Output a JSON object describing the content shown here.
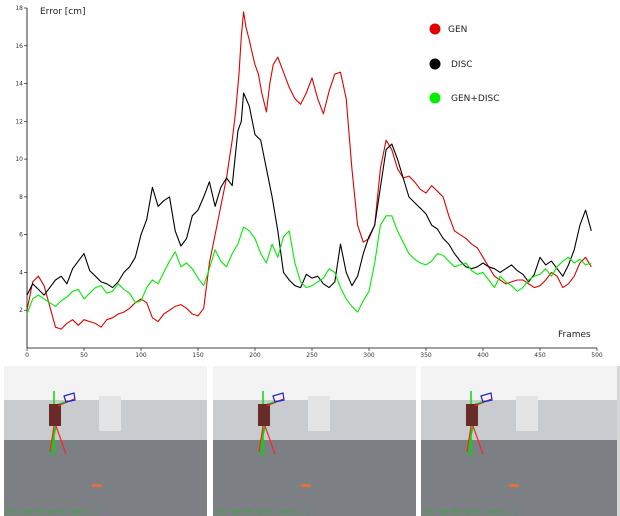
{
  "chart_data": {
    "type": "line",
    "ylabel": "Error [cm]",
    "xlabel": "Frames",
    "xlim": [
      0,
      500
    ],
    "ylim": [
      0,
      18
    ],
    "xticks": [
      0,
      50,
      100,
      150,
      200,
      250,
      300,
      350,
      400,
      450,
      500
    ],
    "yticks": [
      2,
      4,
      6,
      8,
      10,
      12,
      14,
      16,
      18
    ],
    "grid": false,
    "legend_position": "top-right",
    "series": [
      {
        "name": "GEN",
        "color": "#e00000",
        "x": [
          0,
          5,
          10,
          15,
          20,
          25,
          30,
          35,
          40,
          45,
          50,
          55,
          60,
          65,
          70,
          75,
          80,
          85,
          90,
          95,
          100,
          105,
          110,
          115,
          120,
          125,
          130,
          135,
          140,
          145,
          150,
          155,
          160,
          165,
          170,
          175,
          180,
          183,
          186,
          188,
          190,
          192,
          195,
          198,
          200,
          203,
          206,
          210,
          213,
          216,
          220,
          225,
          230,
          235,
          240,
          245,
          250,
          255,
          260,
          265,
          270,
          275,
          280,
          285,
          290,
          295,
          300,
          305,
          310,
          315,
          320,
          325,
          330,
          335,
          340,
          345,
          350,
          355,
          360,
          365,
          370,
          375,
          380,
          385,
          390,
          395,
          400,
          405,
          410,
          415,
          420,
          425,
          430,
          435,
          440,
          445,
          450,
          455,
          460,
          465,
          470,
          475,
          480,
          485,
          490,
          495
        ],
        "values": [
          2.0,
          3.5,
          3.8,
          3.3,
          2.2,
          1.1,
          1.0,
          1.3,
          1.5,
          1.2,
          1.5,
          1.4,
          1.3,
          1.1,
          1.5,
          1.6,
          1.8,
          1.9,
          2.1,
          2.4,
          2.6,
          2.4,
          1.6,
          1.4,
          1.8,
          2.0,
          2.2,
          2.3,
          2.1,
          1.8,
          1.7,
          2.1,
          4.5,
          6.0,
          7.5,
          9.0,
          11.0,
          12.5,
          14.5,
          16.5,
          17.8,
          17.0,
          16.3,
          15.5,
          15.0,
          14.5,
          13.5,
          12.5,
          14.0,
          15.0,
          15.4,
          14.6,
          13.8,
          13.2,
          12.9,
          13.5,
          14.3,
          13.2,
          12.4,
          13.6,
          14.5,
          14.6,
          13.2,
          9.5,
          6.5,
          5.6,
          5.8,
          6.5,
          9.5,
          11.0,
          10.5,
          9.5,
          9.0,
          9.1,
          8.8,
          8.4,
          8.2,
          8.6,
          8.3,
          8.0,
          7.0,
          6.2,
          6.0,
          5.8,
          5.5,
          5.3,
          4.8,
          4.3,
          3.8,
          3.6,
          3.4,
          3.5,
          3.6,
          3.6,
          3.4,
          3.2,
          3.3,
          3.6,
          4.0,
          3.8,
          3.2,
          3.4,
          3.8,
          4.5,
          4.8,
          4.3
        ]
      },
      {
        "name": "DISC",
        "color": "#000000",
        "x": [
          0,
          5,
          10,
          15,
          20,
          25,
          30,
          35,
          40,
          45,
          50,
          55,
          60,
          65,
          70,
          75,
          80,
          85,
          90,
          95,
          100,
          105,
          110,
          115,
          120,
          125,
          130,
          135,
          140,
          145,
          150,
          155,
          160,
          165,
          170,
          175,
          180,
          185,
          188,
          190,
          195,
          200,
          205,
          210,
          215,
          220,
          225,
          230,
          235,
          240,
          245,
          250,
          255,
          260,
          265,
          270,
          275,
          280,
          285,
          290,
          295,
          300,
          305,
          310,
          315,
          320,
          325,
          330,
          335,
          340,
          345,
          350,
          355,
          360,
          365,
          370,
          375,
          380,
          385,
          390,
          395,
          400,
          405,
          410,
          415,
          420,
          425,
          430,
          435,
          440,
          445,
          450,
          455,
          460,
          465,
          470,
          475,
          480,
          485,
          490,
          495
        ],
        "values": [
          2.8,
          3.4,
          3.1,
          2.8,
          3.2,
          3.6,
          3.8,
          3.4,
          4.2,
          4.6,
          5.0,
          4.1,
          3.8,
          3.5,
          3.4,
          3.2,
          3.5,
          4.0,
          4.3,
          4.8,
          6.0,
          6.8,
          8.5,
          7.5,
          7.8,
          8.0,
          6.2,
          5.4,
          5.8,
          7.0,
          7.3,
          8.0,
          8.8,
          7.5,
          8.5,
          9.0,
          8.6,
          11.5,
          12.0,
          13.5,
          12.8,
          11.3,
          11.0,
          9.5,
          8.0,
          6.2,
          4.0,
          3.6,
          3.3,
          3.2,
          3.9,
          3.7,
          3.8,
          3.4,
          3.2,
          3.5,
          5.5,
          4.0,
          3.3,
          3.8,
          5.0,
          5.9,
          6.5,
          8.5,
          10.5,
          10.8,
          10.0,
          9.0,
          8.0,
          7.7,
          7.4,
          7.1,
          6.5,
          6.3,
          5.8,
          5.5,
          5.0,
          4.6,
          4.3,
          4.2,
          4.3,
          4.5,
          4.3,
          4.2,
          4.0,
          4.2,
          4.4,
          4.1,
          3.9,
          3.5,
          3.9,
          4.8,
          4.4,
          4.6,
          4.2,
          3.8,
          4.4,
          5.2,
          6.5,
          7.3,
          6.2
        ]
      },
      {
        "name": "GEN+DISC",
        "color": "#00ee00",
        "x": [
          0,
          5,
          10,
          15,
          20,
          25,
          30,
          35,
          40,
          45,
          50,
          55,
          60,
          65,
          70,
          75,
          80,
          85,
          90,
          95,
          100,
          105,
          110,
          115,
          120,
          125,
          130,
          135,
          140,
          145,
          150,
          155,
          160,
          165,
          170,
          175,
          180,
          185,
          190,
          195,
          200,
          205,
          210,
          215,
          220,
          225,
          230,
          235,
          240,
          245,
          250,
          255,
          260,
          265,
          270,
          275,
          280,
          285,
          290,
          295,
          300,
          305,
          310,
          315,
          320,
          325,
          330,
          335,
          340,
          345,
          350,
          355,
          360,
          365,
          370,
          375,
          380,
          385,
          390,
          395,
          400,
          405,
          410,
          415,
          420,
          425,
          430,
          435,
          440,
          445,
          450,
          455,
          460,
          465,
          470,
          475,
          480,
          485,
          490,
          495
        ],
        "values": [
          1.8,
          2.6,
          2.8,
          2.6,
          2.4,
          2.2,
          2.5,
          2.7,
          3.0,
          3.1,
          2.6,
          2.9,
          3.2,
          3.3,
          2.9,
          3.0,
          3.4,
          3.1,
          2.9,
          2.4,
          2.5,
          3.2,
          3.6,
          3.4,
          4.0,
          4.6,
          5.1,
          4.3,
          4.5,
          4.2,
          3.7,
          3.3,
          4.2,
          5.2,
          4.6,
          4.3,
          5.0,
          5.5,
          6.4,
          6.2,
          5.8,
          5.0,
          4.5,
          5.5,
          4.8,
          5.9,
          6.2,
          4.5,
          3.5,
          3.2,
          3.3,
          3.5,
          3.7,
          4.2,
          4.0,
          3.2,
          2.6,
          2.2,
          1.9,
          2.5,
          3.0,
          4.5,
          6.5,
          7.0,
          7.0,
          6.2,
          5.6,
          5.0,
          4.7,
          4.5,
          4.4,
          4.6,
          5.0,
          4.9,
          4.6,
          4.3,
          4.4,
          4.5,
          4.1,
          3.9,
          4.0,
          3.6,
          3.2,
          3.8,
          3.5,
          3.3,
          3.0,
          3.2,
          3.6,
          3.8,
          3.9,
          4.2,
          3.8,
          4.3,
          4.6,
          4.8,
          4.5,
          4.7,
          4.4,
          4.5
        ]
      }
    ]
  },
  "frames": [
    {
      "overlay_text": "File: Frame 170 : part 4 : camera 1 : 1"
    },
    {
      "overlay_text": "File: Frame 190 : part 4 : camera 1 : 1"
    },
    {
      "overlay_text": "File: Frame 280 : part 4 : camera 1 : 1"
    }
  ]
}
